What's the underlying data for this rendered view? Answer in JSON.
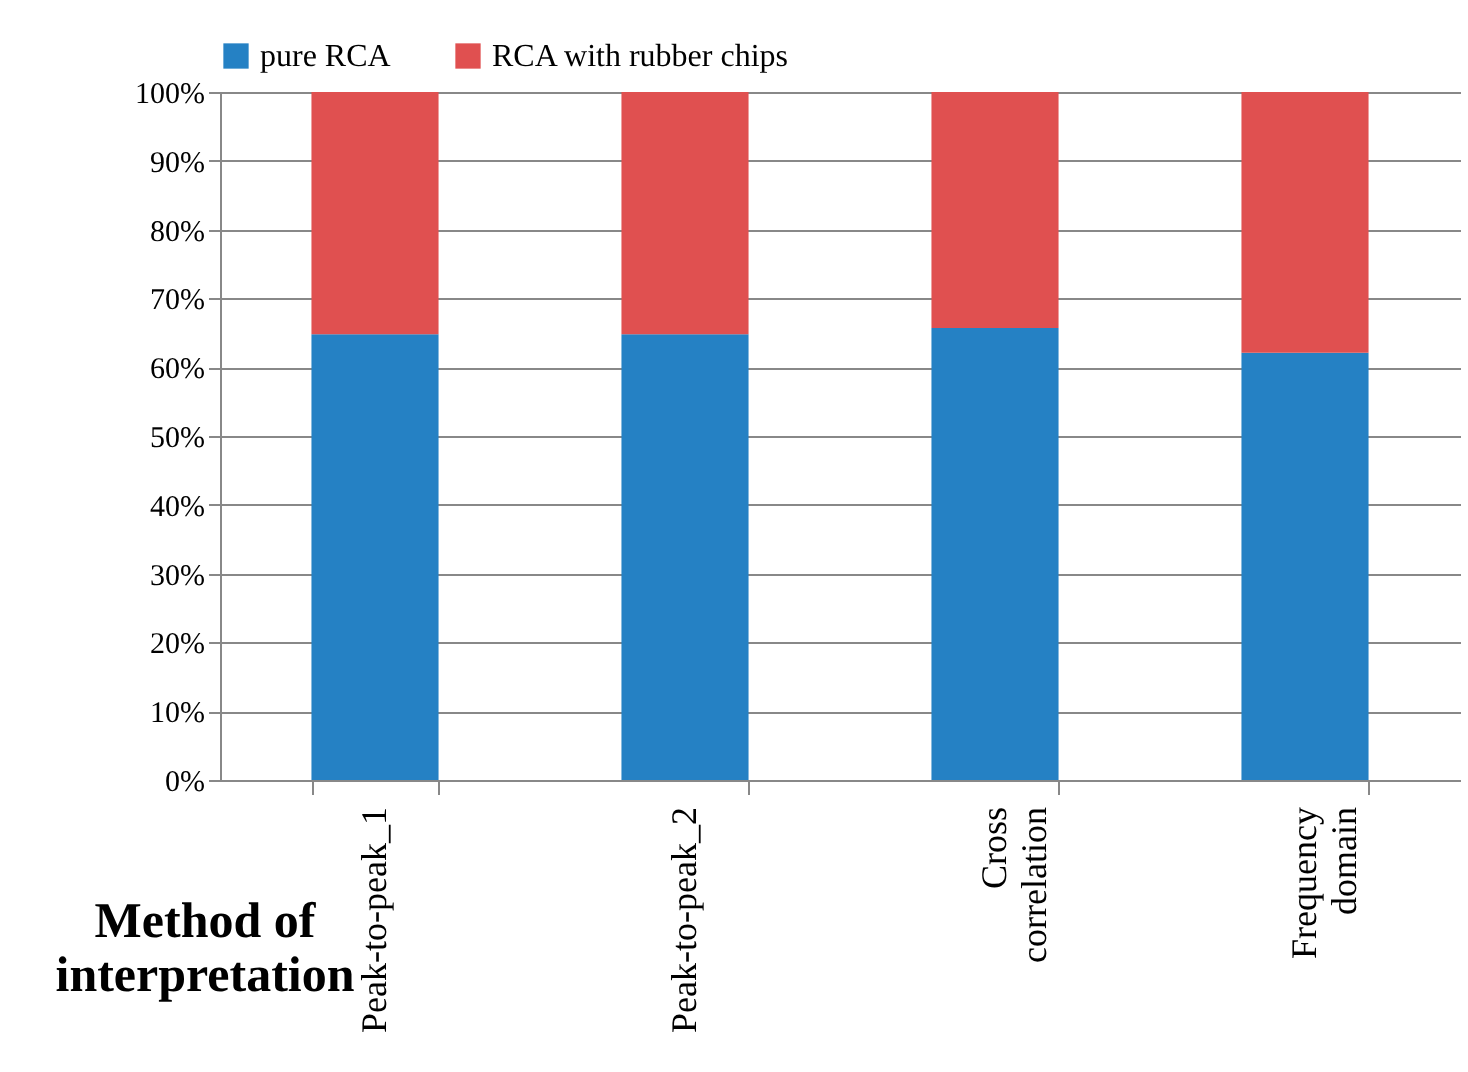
{
  "chart_data": {
    "type": "bar",
    "stacked": true,
    "xlabel": "Method of interpretation",
    "categories": [
      "Peak-to-peak_1",
      "Peak-to-peak_2",
      "Cross correlation",
      "Frequency domain"
    ],
    "series": [
      {
        "name": "pure RCA",
        "color": "#2581c4",
        "values": [
          64.8,
          64.8,
          65.7,
          62.1
        ]
      },
      {
        "name": "RCA with rubber chips",
        "color": "#e05050",
        "values": [
          35.2,
          35.2,
          34.3,
          37.9
        ]
      }
    ],
    "ylim": [
      0,
      100
    ],
    "yticks": [
      {
        "value": 0,
        "label": "0%"
      },
      {
        "value": 10,
        "label": "10%"
      },
      {
        "value": 20,
        "label": "20%"
      },
      {
        "value": 30,
        "label": "30%"
      },
      {
        "value": 40,
        "label": "40%"
      },
      {
        "value": 50,
        "label": "50%"
      },
      {
        "value": 60,
        "label": "60%"
      },
      {
        "value": 70,
        "label": "70%"
      },
      {
        "value": 80,
        "label": "80%"
      },
      {
        "value": 90,
        "label": "90%"
      },
      {
        "value": 100,
        "label": "100%"
      }
    ],
    "grid": "y",
    "legend": "top"
  }
}
